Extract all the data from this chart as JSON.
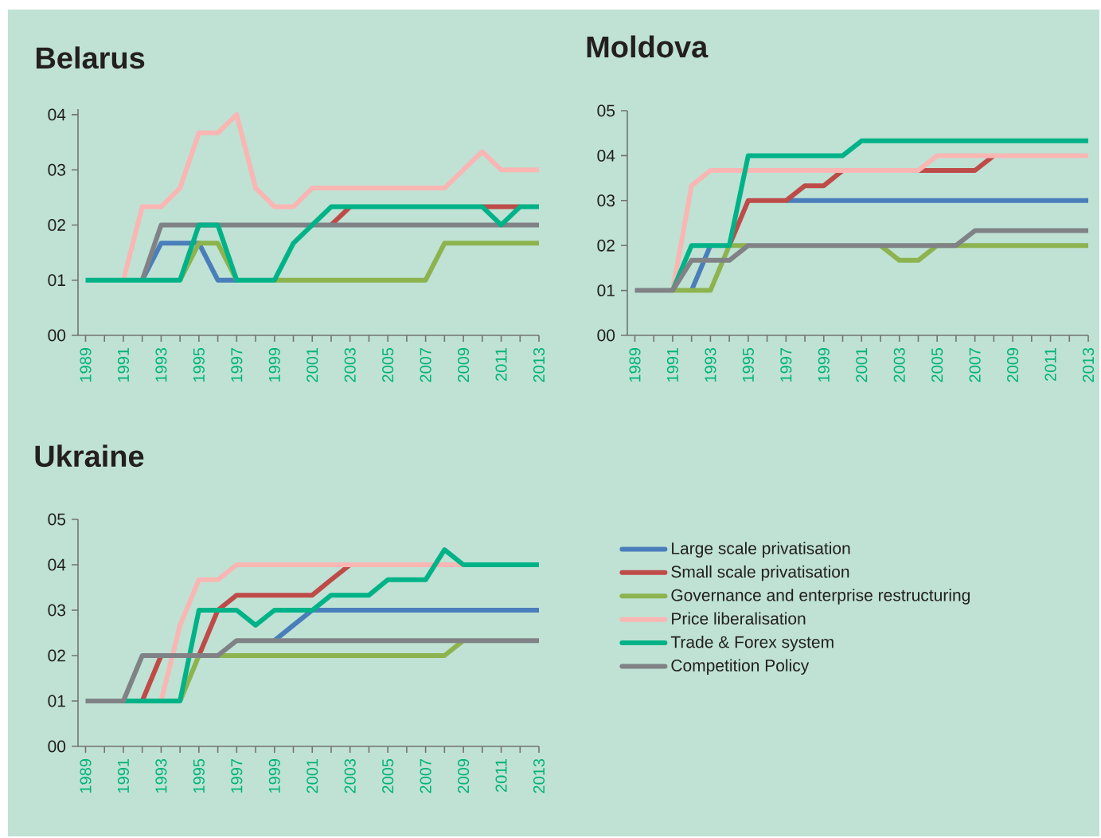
{
  "chart_data": [
    {
      "type": "line",
      "title": "Belarus",
      "x": [
        1989,
        1990,
        1991,
        1992,
        1993,
        1994,
        1995,
        1996,
        1997,
        1998,
        1999,
        2000,
        2001,
        2002,
        2003,
        2004,
        2005,
        2006,
        2007,
        2008,
        2009,
        2010,
        2011,
        2012,
        2013
      ],
      "xlim": [
        1988.6,
        2013
      ],
      "ylim": [
        0,
        4.1
      ],
      "xticks": [
        1989,
        {
          "value": 1990,
          "label": null
        },
        1991,
        {
          "value": 1992,
          "label": null
        },
        1993,
        {
          "value": 1994,
          "label": null
        },
        1995,
        {
          "value": 1996,
          "label": null
        },
        1997,
        {
          "value": 1998,
          "label": null
        },
        1999,
        {
          "value": 2000,
          "label": null
        },
        2001,
        {
          "value": 2002,
          "label": null
        },
        2003,
        {
          "value": 2004,
          "label": null
        },
        2005,
        {
          "value": 2006,
          "label": null
        },
        2007,
        {
          "value": 2008,
          "label": null
        },
        2009,
        {
          "value": 2010,
          "label": null
        },
        2011,
        {
          "value": 2012,
          "label": null
        },
        2013
      ],
      "yticks": [
        {
          "value": 0,
          "label": "00"
        },
        {
          "value": 1,
          "label": "01"
        },
        {
          "value": 2,
          "label": "02"
        },
        {
          "value": 3,
          "label": "03"
        },
        {
          "value": 4,
          "label": "04"
        }
      ],
      "series": [
        {
          "color": "#4a7ebb",
          "values": [
            null,
            null,
            null,
            1,
            1.67,
            1.67,
            1.67,
            1,
            1,
            null,
            null,
            null,
            null,
            null,
            null,
            null,
            null,
            null,
            null,
            null,
            null,
            null,
            null,
            null,
            null
          ]
        },
        {
          "color": "#be4b48",
          "values": [
            null,
            null,
            null,
            null,
            null,
            null,
            null,
            null,
            null,
            null,
            null,
            null,
            null,
            2,
            2.33,
            null,
            null,
            null,
            null,
            null,
            null,
            2.33,
            2.33,
            2.33,
            null
          ]
        },
        {
          "color": "#8db34f",
          "values": [
            null,
            null,
            null,
            null,
            null,
            1,
            1.67,
            1.67,
            1,
            null,
            1,
            1,
            1,
            1,
            1,
            1,
            1,
            1,
            1,
            1.67,
            1.67,
            1.67,
            1.67,
            1.67,
            1.67
          ]
        },
        {
          "color": "#f9b6b3",
          "values": [
            null,
            null,
            1,
            2.33,
            2.33,
            2.67,
            3.67,
            3.67,
            4,
            2.67,
            2.33,
            2.33,
            2.67,
            2.67,
            2.67,
            2.67,
            2.67,
            2.67,
            2.67,
            2.67,
            3,
            3.33,
            3,
            3,
            3
          ]
        },
        {
          "color": "#808285",
          "values": [
            null,
            null,
            null,
            1,
            2,
            2,
            2,
            2,
            2,
            2,
            2,
            2,
            2,
            2,
            2,
            2,
            2,
            2,
            2,
            2,
            2,
            2,
            2,
            2,
            2
          ]
        },
        {
          "color": "#00b287",
          "values": [
            1,
            1,
            1,
            1,
            1,
            1,
            2,
            2,
            1,
            1,
            1,
            1.67,
            2,
            2.33,
            2.33,
            2.33,
            2.33,
            2.33,
            2.33,
            2.33,
            2.33,
            2.33,
            2,
            2.33,
            2.33
          ]
        }
      ]
    },
    {
      "type": "line",
      "title": "Moldova",
      "x": [
        1989,
        1990,
        1991,
        1992,
        1993,
        1994,
        1995,
        1996,
        1997,
        1998,
        1999,
        2000,
        2001,
        2002,
        2003,
        2004,
        2005,
        2006,
        2007,
        2008,
        2009,
        2010,
        2011,
        2012,
        2013
      ],
      "xlim": [
        1988.6,
        2013
      ],
      "ylim": [
        0,
        5
      ],
      "xticks": [
        1989,
        {
          "value": 1990,
          "label": null
        },
        1991,
        {
          "value": 1992,
          "label": null
        },
        1993,
        {
          "value": 1994,
          "label": null
        },
        1995,
        {
          "value": 1996,
          "label": null
        },
        1997,
        {
          "value": 1998,
          "label": null
        },
        1999,
        {
          "value": 2000,
          "label": null
        },
        2001,
        {
          "value": 2002,
          "label": null
        },
        2003,
        {
          "value": 2004,
          "label": null
        },
        2005,
        {
          "value": 2006,
          "label": null
        },
        2007,
        {
          "value": 2008,
          "label": null
        },
        2009,
        {
          "value": 2010,
          "label": null
        },
        2011,
        {
          "value": 2012,
          "label": null
        },
        2013
      ],
      "yticks": [
        {
          "value": 0,
          "label": "00"
        },
        {
          "value": 1,
          "label": "01"
        },
        {
          "value": 2,
          "label": "02"
        },
        {
          "value": 3,
          "label": "03"
        },
        {
          "value": 4,
          "label": "04"
        },
        {
          "value": 5,
          "label": "05"
        }
      ],
      "series": [
        {
          "color": "#4a7ebb",
          "values": [
            null,
            null,
            null,
            1,
            2,
            null,
            null,
            null,
            3,
            3,
            3,
            3,
            3,
            3,
            3,
            3,
            3,
            3,
            3,
            3,
            3,
            3,
            3,
            3,
            3
          ]
        },
        {
          "color": "#be4b48",
          "values": [
            null,
            null,
            null,
            null,
            null,
            2,
            3,
            3,
            3,
            3.33,
            3.33,
            3.67,
            null,
            null,
            null,
            3.67,
            3.67,
            3.67,
            3.67,
            4,
            null,
            null,
            null,
            null,
            null
          ]
        },
        {
          "color": "#8db34f",
          "values": [
            null,
            null,
            1,
            1,
            1,
            2,
            2,
            null,
            null,
            null,
            null,
            null,
            null,
            2,
            1.67,
            1.67,
            2,
            2,
            2,
            2,
            2,
            2,
            2,
            2,
            2
          ]
        },
        {
          "color": "#f9b6b3",
          "values": [
            null,
            null,
            1,
            3.33,
            3.67,
            3.67,
            3.67,
            3.67,
            3.67,
            3.67,
            3.67,
            3.67,
            3.67,
            3.67,
            3.67,
            3.67,
            4,
            4,
            4,
            4,
            4,
            4,
            4,
            4,
            4
          ]
        },
        {
          "color": "#00b287",
          "values": [
            null,
            null,
            1,
            2,
            2,
            2,
            4,
            4,
            4,
            4,
            4,
            4,
            4.33,
            4.33,
            4.33,
            4.33,
            4.33,
            4.33,
            4.33,
            4.33,
            4.33,
            4.33,
            4.33,
            4.33,
            4.33
          ]
        },
        {
          "color": "#808285",
          "values": [
            1,
            1,
            1,
            1.67,
            1.67,
            1.67,
            2,
            2,
            2,
            2,
            2,
            2,
            2,
            2,
            2,
            2,
            2,
            2,
            2.33,
            2.33,
            2.33,
            2.33,
            2.33,
            2.33,
            2.33
          ]
        }
      ]
    },
    {
      "type": "line",
      "title": "Ukraine",
      "legend": "right",
      "x": [
        1989,
        1990,
        1991,
        1992,
        1993,
        1994,
        1995,
        1996,
        1997,
        1998,
        1999,
        2000,
        2001,
        2002,
        2003,
        2004,
        2005,
        2006,
        2007,
        2008,
        2009,
        2010,
        2011,
        2012,
        2013
      ],
      "xlim": [
        1988.6,
        2013
      ],
      "ylim": [
        0,
        5
      ],
      "xticks": [
        1989,
        {
          "value": 1990,
          "label": null
        },
        1991,
        {
          "value": 1992,
          "label": null
        },
        1993,
        {
          "value": 1994,
          "label": null
        },
        1995,
        {
          "value": 1996,
          "label": null
        },
        1997,
        {
          "value": 1998,
          "label": null
        },
        1999,
        {
          "value": 2000,
          "label": null
        },
        2001,
        {
          "value": 2002,
          "label": null
        },
        2003,
        {
          "value": 2004,
          "label": null
        },
        2005,
        {
          "value": 2006,
          "label": null
        },
        2007,
        {
          "value": 2008,
          "label": null
        },
        2009,
        {
          "value": 2010,
          "label": null
        },
        2011,
        {
          "value": 2012,
          "label": null
        },
        2013
      ],
      "yticks": [
        {
          "value": 0,
          "label": "00"
        },
        {
          "value": 1,
          "label": "01"
        },
        {
          "value": 2,
          "label": "02"
        },
        {
          "value": 3,
          "label": "03"
        },
        {
          "value": 4,
          "label": "04"
        },
        {
          "value": 5,
          "label": "05"
        }
      ],
      "series": [
        {
          "name": "Large scale privatisation",
          "color": "#4a7ebb",
          "values": [
            null,
            null,
            null,
            null,
            null,
            null,
            null,
            null,
            null,
            null,
            2.33,
            2.67,
            3,
            3,
            3,
            3,
            3,
            3,
            3,
            3,
            3,
            3,
            3,
            3,
            3
          ]
        },
        {
          "name": "Small scale privatisation",
          "color": "#be4b48",
          "values": [
            null,
            null,
            null,
            1,
            2,
            null,
            2,
            3,
            3.33,
            3.33,
            3.33,
            3.33,
            3.33,
            3.67,
            4,
            null,
            null,
            null,
            null,
            null,
            null,
            null,
            null,
            null,
            null
          ]
        },
        {
          "name": "Governance and enterprise restructuring",
          "color": "#8db34f",
          "values": [
            null,
            null,
            null,
            null,
            null,
            1,
            2,
            2,
            2,
            2,
            2,
            2,
            2,
            2,
            2,
            2,
            2,
            2,
            2,
            2,
            2.33,
            null,
            null,
            null,
            null
          ]
        },
        {
          "name": "Price liberalisation",
          "color": "#f9b6b3",
          "values": [
            null,
            null,
            null,
            null,
            1,
            2.67,
            3.67,
            3.67,
            4,
            4,
            4,
            4,
            4,
            4,
            4,
            4,
            4,
            4,
            4,
            4,
            4,
            null,
            null,
            null,
            null
          ]
        },
        {
          "name": "Trade & Forex system",
          "color": "#00b287",
          "values": [
            null,
            null,
            1,
            1,
            1,
            1,
            3,
            3,
            3,
            2.67,
            3,
            3,
            3,
            3.33,
            3.33,
            3.33,
            3.67,
            3.67,
            3.67,
            4.33,
            4,
            4,
            4,
            4,
            4
          ]
        },
        {
          "name": "Competition Policy",
          "color": "#808285",
          "values": [
            1,
            1,
            1,
            2,
            2,
            2,
            2,
            2,
            2.33,
            2.33,
            2.33,
            2.33,
            2.33,
            2.33,
            2.33,
            2.33,
            2.33,
            2.33,
            2.33,
            2.33,
            2.33,
            2.33,
            2.33,
            2.33,
            2.33
          ]
        }
      ]
    }
  ]
}
